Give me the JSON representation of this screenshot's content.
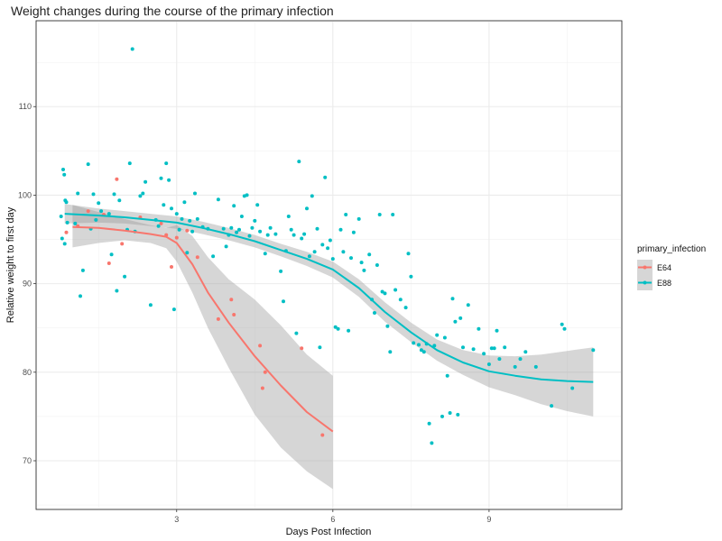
{
  "chart_data": {
    "type": "scatter",
    "title": "Weight changes during the course of the primary infection",
    "xlabel": "Days Post Infection",
    "ylabel": "Relative weight to first day",
    "xlim": [
      0.3,
      11.55
    ],
    "ylim": [
      64.5,
      119.7
    ],
    "xticks": [
      3,
      6,
      9
    ],
    "yticks": [
      70,
      80,
      90,
      100,
      110
    ],
    "grid": true,
    "legend": {
      "title": "primary_infection",
      "position": "right"
    },
    "series": [
      {
        "name": "E64",
        "color": "#F8766D",
        "points": [
          [
            0.88,
            95.8
          ],
          [
            1.1,
            96.5
          ],
          [
            1.3,
            98.2
          ],
          [
            1.6,
            97.8
          ],
          [
            1.7,
            92.3
          ],
          [
            1.85,
            101.8
          ],
          [
            1.95,
            94.5
          ],
          [
            2.3,
            97.5
          ],
          [
            2.7,
            96.8
          ],
          [
            2.8,
            95.5
          ],
          [
            2.9,
            91.9
          ],
          [
            3.0,
            95.2
          ],
          [
            3.2,
            96.0
          ],
          [
            3.4,
            93.0
          ],
          [
            3.8,
            86.0
          ],
          [
            4.05,
            88.2
          ],
          [
            4.1,
            86.5
          ],
          [
            4.6,
            83.0
          ],
          [
            4.65,
            78.2
          ],
          [
            4.7,
            80.0
          ],
          [
            5.4,
            82.7
          ],
          [
            5.8,
            72.9
          ]
        ],
        "smooth": {
          "x": [
            1.0,
            1.5,
            2.0,
            2.5,
            2.8,
            3.0,
            3.3,
            3.6,
            4.0,
            4.5,
            5.0,
            5.5,
            6.0
          ],
          "y": [
            96.4,
            96.3,
            96.0,
            95.6,
            95.3,
            94.6,
            92.2,
            89.0,
            85.6,
            81.8,
            78.5,
            75.5,
            73.3
          ],
          "lower": [
            94.1,
            94.6,
            94.9,
            94.6,
            94.0,
            92.5,
            89.0,
            85.0,
            80.5,
            75.2,
            71.5,
            68.8,
            66.8
          ],
          "upper": [
            98.9,
            98.1,
            97.3,
            96.6,
            96.3,
            96.6,
            95.4,
            93.0,
            90.5,
            88.2,
            85.3,
            82.0,
            79.6
          ]
        }
      },
      {
        "name": "E88",
        "color": "#00BFC4",
        "points": [
          [
            0.78,
            97.6
          ],
          [
            0.8,
            95.1
          ],
          [
            0.82,
            102.9
          ],
          [
            0.84,
            102.3
          ],
          [
            0.86,
            99.4
          ],
          [
            0.88,
            99.2
          ],
          [
            0.9,
            96.9
          ],
          [
            0.85,
            94.5
          ],
          [
            1.05,
            96.8
          ],
          [
            1.1,
            100.2
          ],
          [
            1.15,
            88.6
          ],
          [
            1.2,
            91.5
          ],
          [
            1.3,
            103.5
          ],
          [
            1.35,
            96.2
          ],
          [
            1.4,
            100.1
          ],
          [
            1.45,
            97.2
          ],
          [
            1.5,
            99.1
          ],
          [
            1.55,
            98.2
          ],
          [
            1.7,
            97.9
          ],
          [
            1.75,
            93.3
          ],
          [
            1.8,
            100.1
          ],
          [
            1.85,
            89.2
          ],
          [
            1.9,
            99.4
          ],
          [
            2.0,
            90.8
          ],
          [
            2.05,
            96.1
          ],
          [
            2.1,
            103.6
          ],
          [
            2.15,
            116.5
          ],
          [
            2.2,
            95.9
          ],
          [
            2.3,
            99.9
          ],
          [
            2.35,
            100.2
          ],
          [
            2.4,
            101.5
          ],
          [
            2.5,
            87.6
          ],
          [
            2.6,
            97.2
          ],
          [
            2.65,
            96.5
          ],
          [
            2.7,
            101.9
          ],
          [
            2.75,
            98.9
          ],
          [
            2.8,
            103.6
          ],
          [
            2.85,
            101.7
          ],
          [
            2.9,
            98.5
          ],
          [
            2.95,
            87.1
          ],
          [
            3.0,
            97.9
          ],
          [
            3.05,
            96.1
          ],
          [
            3.1,
            97.3
          ],
          [
            3.15,
            99.2
          ],
          [
            3.2,
            93.5
          ],
          [
            3.25,
            97.1
          ],
          [
            3.3,
            95.9
          ],
          [
            3.35,
            100.2
          ],
          [
            3.4,
            97.3
          ],
          [
            3.5,
            96.4
          ],
          [
            3.6,
            96.2
          ],
          [
            3.7,
            93.1
          ],
          [
            3.8,
            99.5
          ],
          [
            3.9,
            96.2
          ],
          [
            3.95,
            94.2
          ],
          [
            4.0,
            95.5
          ],
          [
            4.05,
            96.3
          ],
          [
            4.1,
            98.8
          ],
          [
            4.15,
            95.8
          ],
          [
            4.2,
            96.1
          ],
          [
            4.25,
            97.6
          ],
          [
            4.3,
            99.9
          ],
          [
            4.35,
            100.0
          ],
          [
            4.4,
            95.4
          ],
          [
            4.45,
            96.3
          ],
          [
            4.5,
            97.1
          ],
          [
            4.55,
            98.9
          ],
          [
            4.6,
            95.9
          ],
          [
            4.7,
            93.4
          ],
          [
            4.75,
            95.5
          ],
          [
            4.8,
            96.3
          ],
          [
            4.9,
            95.6
          ],
          [
            5.0,
            91.4
          ],
          [
            5.05,
            88.0
          ],
          [
            5.1,
            93.7
          ],
          [
            5.15,
            97.6
          ],
          [
            5.2,
            96.1
          ],
          [
            5.25,
            95.5
          ],
          [
            5.3,
            84.4
          ],
          [
            5.35,
            103.8
          ],
          [
            5.4,
            95.1
          ],
          [
            5.45,
            95.6
          ],
          [
            5.5,
            98.5
          ],
          [
            5.55,
            93.1
          ],
          [
            5.6,
            99.9
          ],
          [
            5.65,
            93.6
          ],
          [
            5.7,
            96.2
          ],
          [
            5.75,
            82.8
          ],
          [
            5.8,
            94.4
          ],
          [
            5.85,
            102.0
          ],
          [
            5.9,
            94.0
          ],
          [
            5.95,
            94.9
          ],
          [
            6.0,
            92.8
          ],
          [
            6.05,
            85.1
          ],
          [
            6.1,
            84.9
          ],
          [
            6.15,
            96.1
          ],
          [
            6.2,
            93.6
          ],
          [
            6.25,
            97.8
          ],
          [
            6.3,
            84.7
          ],
          [
            6.35,
            92.9
          ],
          [
            6.4,
            95.8
          ],
          [
            6.5,
            97.3
          ],
          [
            6.55,
            92.4
          ],
          [
            6.6,
            91.5
          ],
          [
            6.7,
            93.3
          ],
          [
            6.75,
            88.2
          ],
          [
            6.8,
            86.7
          ],
          [
            6.85,
            92.1
          ],
          [
            6.9,
            97.8
          ],
          [
            6.95,
            89.1
          ],
          [
            7.0,
            88.9
          ],
          [
            7.05,
            85.2
          ],
          [
            7.1,
            82.3
          ],
          [
            7.15,
            97.8
          ],
          [
            7.2,
            89.3
          ],
          [
            7.3,
            88.2
          ],
          [
            7.4,
            87.3
          ],
          [
            7.45,
            93.4
          ],
          [
            7.5,
            90.8
          ],
          [
            7.55,
            83.3
          ],
          [
            7.65,
            83.1
          ],
          [
            7.7,
            82.5
          ],
          [
            7.75,
            82.3
          ],
          [
            7.8,
            83.2
          ],
          [
            7.85,
            74.2
          ],
          [
            7.9,
            72.0
          ],
          [
            7.95,
            83.0
          ],
          [
            8.0,
            84.2
          ],
          [
            8.1,
            75.0
          ],
          [
            8.15,
            83.9
          ],
          [
            8.2,
            79.6
          ],
          [
            8.25,
            75.4
          ],
          [
            8.3,
            88.3
          ],
          [
            8.35,
            85.7
          ],
          [
            8.4,
            75.2
          ],
          [
            8.45,
            86.1
          ],
          [
            8.5,
            82.8
          ],
          [
            8.6,
            87.6
          ],
          [
            8.7,
            82.6
          ],
          [
            8.8,
            84.9
          ],
          [
            8.9,
            82.1
          ],
          [
            9.0,
            80.9
          ],
          [
            9.05,
            82.7
          ],
          [
            9.1,
            82.7
          ],
          [
            9.15,
            84.7
          ],
          [
            9.2,
            81.5
          ],
          [
            9.3,
            82.8
          ],
          [
            9.5,
            80.6
          ],
          [
            9.6,
            81.5
          ],
          [
            9.7,
            82.3
          ],
          [
            9.9,
            80.6
          ],
          [
            10.2,
            76.2
          ],
          [
            10.4,
            85.4
          ],
          [
            10.45,
            84.9
          ],
          [
            10.6,
            78.2
          ],
          [
            11.0,
            82.5
          ]
        ],
        "smooth": {
          "x": [
            0.85,
            1.5,
            2.0,
            2.5,
            3.0,
            3.5,
            4.0,
            4.5,
            5.0,
            5.5,
            6.0,
            6.5,
            7.0,
            7.5,
            8.0,
            8.5,
            9.0,
            9.5,
            10.0,
            10.5,
            11.0
          ],
          "y": [
            97.9,
            97.7,
            97.5,
            97.2,
            96.9,
            96.3,
            95.6,
            94.8,
            93.8,
            92.8,
            91.6,
            89.5,
            86.8,
            84.5,
            82.5,
            81.1,
            80.1,
            79.6,
            79.2,
            79.0,
            78.9
          ],
          "lower": [
            96.8,
            96.9,
            96.8,
            96.5,
            96.2,
            95.6,
            94.9,
            94.1,
            93.1,
            92.0,
            90.7,
            88.5,
            85.7,
            83.4,
            81.3,
            79.7,
            78.3,
            77.4,
            76.4,
            75.6,
            75.0
          ],
          "upper": [
            99.0,
            98.5,
            98.2,
            97.9,
            97.6,
            97.0,
            96.3,
            95.5,
            94.5,
            93.6,
            92.5,
            90.5,
            87.9,
            85.6,
            83.7,
            82.5,
            81.9,
            81.8,
            82.0,
            82.4,
            82.8
          ]
        }
      }
    ]
  }
}
